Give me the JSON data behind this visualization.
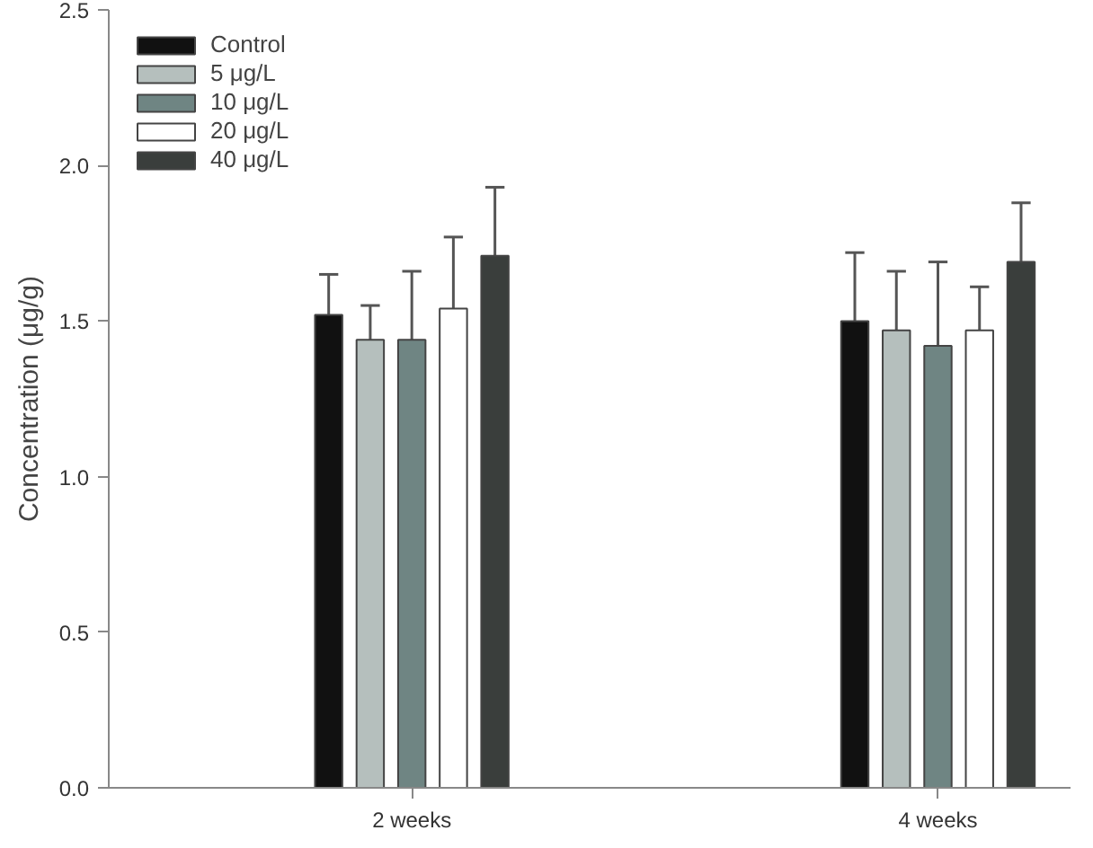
{
  "chart_data": {
    "type": "bar",
    "ylabel": "Concentration (μg/g)",
    "categories": [
      "2 weeks",
      "4 weeks"
    ],
    "series": [
      {
        "name": "Control",
        "color": "#111111",
        "values": [
          1.52,
          1.5
        ],
        "errors": [
          [
            1.52,
            1.65
          ],
          [
            1.5,
            1.72
          ]
        ]
      },
      {
        "name": "5 μg/L",
        "color": "#b5bfbd",
        "values": [
          1.44,
          1.47
        ],
        "errors": [
          [
            1.44,
            1.55
          ],
          [
            1.47,
            1.66
          ]
        ]
      },
      {
        "name": "10 μg/L",
        "color": "#6f8583",
        "values": [
          1.44,
          1.42
        ],
        "errors": [
          [
            1.44,
            1.66
          ],
          [
            1.42,
            1.69
          ]
        ]
      },
      {
        "name": "20 μg/L",
        "color": "#ffffff",
        "values": [
          1.54,
          1.47
        ],
        "errors": [
          [
            1.54,
            1.77
          ],
          [
            1.47,
            1.61
          ]
        ]
      },
      {
        "name": "40 μg/L",
        "color": "#3a3e3c",
        "values": [
          1.71,
          1.69
        ],
        "errors": [
          [
            1.71,
            1.93
          ],
          [
            1.69,
            1.88
          ]
        ]
      }
    ],
    "ylim": [
      0,
      2.5
    ],
    "yticks": [
      {
        "value": 0,
        "label": "0.0"
      },
      {
        "value": 0.5,
        "label": "0.5"
      },
      {
        "value": 1,
        "label": "1.0"
      },
      {
        "value": 1.5,
        "label": "1.5"
      },
      {
        "value": 2,
        "label": "2.0"
      },
      {
        "value": 2.5,
        "label": "2.5"
      }
    ],
    "grid": false,
    "legend": "top left"
  }
}
